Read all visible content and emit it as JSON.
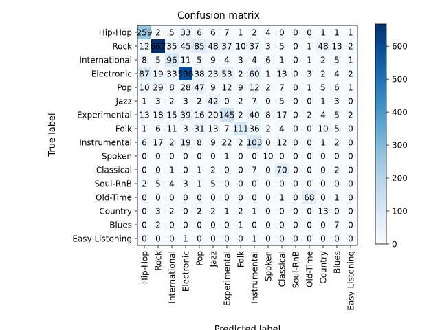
{
  "chart_data": {
    "type": "heatmap",
    "title": "Confusion matrix",
    "xlabel": "Predicted label",
    "ylabel": "True label",
    "labels": [
      "Hip-Hop",
      "Rock",
      "International",
      "Electronic",
      "Pop",
      "Jazz",
      "Experimental",
      "Folk",
      "Instrumental",
      "Spoken",
      "Classical",
      "Soul-RnB",
      "Old-Time",
      "Country",
      "Blues",
      "Easy Listening"
    ],
    "matrix": [
      [
        259,
        2,
        5,
        33,
        6,
        6,
        7,
        1,
        2,
        4,
        0,
        0,
        0,
        1,
        1,
        1
      ],
      [
        12,
        667,
        35,
        45,
        85,
        48,
        37,
        10,
        37,
        3,
        5,
        0,
        1,
        48,
        13,
        2
      ],
      [
        8,
        5,
        96,
        11,
        5,
        9,
        4,
        3,
        4,
        6,
        1,
        0,
        1,
        2,
        5,
        1
      ],
      [
        87,
        19,
        33,
        598,
        38,
        23,
        53,
        2,
        60,
        1,
        13,
        0,
        3,
        2,
        4,
        2
      ],
      [
        10,
        29,
        8,
        28,
        47,
        9,
        12,
        9,
        12,
        2,
        7,
        0,
        1,
        5,
        6,
        1
      ],
      [
        1,
        3,
        2,
        3,
        2,
        42,
        0,
        2,
        7,
        0,
        5,
        0,
        0,
        1,
        3,
        0
      ],
      [
        13,
        18,
        15,
        39,
        16,
        20,
        145,
        2,
        40,
        8,
        17,
        0,
        2,
        4,
        5,
        2
      ],
      [
        1,
        6,
        11,
        3,
        31,
        13,
        7,
        111,
        36,
        2,
        4,
        0,
        0,
        10,
        5,
        0
      ],
      [
        6,
        17,
        2,
        19,
        8,
        9,
        22,
        2,
        103,
        0,
        12,
        0,
        0,
        1,
        2,
        0
      ],
      [
        0,
        0,
        0,
        0,
        0,
        0,
        1,
        0,
        0,
        10,
        0,
        0,
        0,
        0,
        0,
        0
      ],
      [
        0,
        0,
        1,
        0,
        1,
        2,
        0,
        0,
        7,
        0,
        70,
        0,
        0,
        0,
        2,
        0
      ],
      [
        2,
        5,
        4,
        3,
        1,
        5,
        0,
        0,
        0,
        0,
        0,
        0,
        0,
        0,
        0,
        0
      ],
      [
        0,
        0,
        0,
        0,
        0,
        0,
        0,
        0,
        0,
        0,
        1,
        0,
        68,
        0,
        1,
        0
      ],
      [
        0,
        3,
        2,
        0,
        2,
        2,
        1,
        2,
        1,
        0,
        0,
        0,
        0,
        13,
        0,
        0
      ],
      [
        0,
        2,
        0,
        0,
        0,
        0,
        0,
        1,
        0,
        0,
        0,
        0,
        0,
        0,
        7,
        0
      ],
      [
        0,
        0,
        0,
        1,
        0,
        0,
        0,
        0,
        1,
        0,
        0,
        0,
        0,
        0,
        0,
        0
      ]
    ],
    "colorbar": {
      "min": 0,
      "max": 667,
      "ticks": [
        0,
        100,
        200,
        300,
        400,
        500,
        600
      ]
    },
    "colormap": "Blues"
  }
}
